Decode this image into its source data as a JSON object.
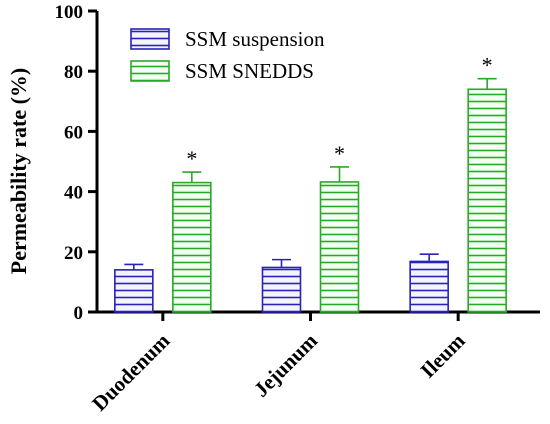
{
  "chart_data": {
    "type": "bar",
    "ylabel": "Permeability rate (%)",
    "xlabel": "",
    "ylim": [
      0,
      100
    ],
    "yticks": [
      0,
      20,
      40,
      60,
      80,
      100
    ],
    "categories": [
      "Duodenum",
      "Jejunum",
      "Ileum"
    ],
    "series": [
      {
        "name": "SSM suspension",
        "values": [
          14,
          14.8,
          16.8
        ],
        "errors": [
          1.8,
          2.6,
          2.4
        ],
        "color": "#2a22b8",
        "fill": "#f4f4ff",
        "pattern": "horizontal-lines"
      },
      {
        "name": "SSM SNEDDS",
        "values": [
          43,
          43.2,
          74
        ],
        "errors": [
          3.5,
          5.0,
          3.5
        ],
        "color": "#2aa82a",
        "fill": "#f2fff2",
        "pattern": "horizontal-lines"
      }
    ],
    "significance": [
      {
        "category": "Duodenum",
        "series": "SSM SNEDDS",
        "label": "*"
      },
      {
        "category": "Jejunum",
        "series": "SSM SNEDDS",
        "label": "*"
      },
      {
        "category": "Ileum",
        "series": "SSM SNEDDS",
        "label": "*"
      }
    ],
    "legend_position": "top-left",
    "grid": false
  }
}
